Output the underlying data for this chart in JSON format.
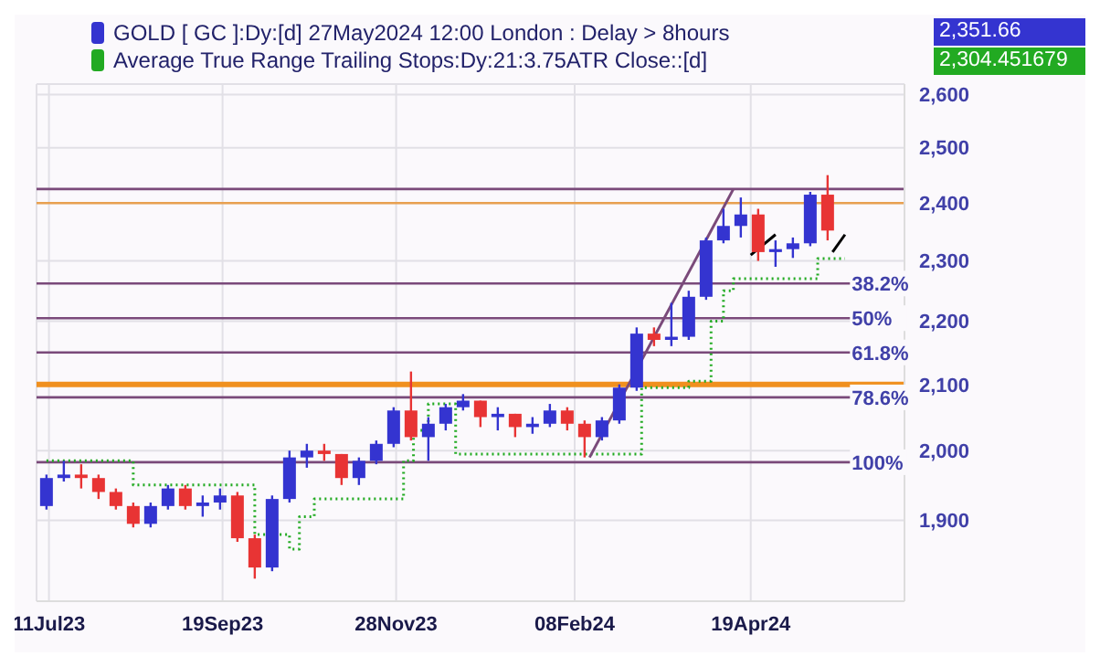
{
  "chart_data": {
    "type": "candlestick",
    "log": "y",
    "grid": true,
    "legend": "top left",
    "xlim": [
      "2023-07-06",
      "2024-06-20"
    ],
    "xticks": [
      {
        "value": "2023-07-11",
        "label": "11Jul23"
      },
      {
        "value": "2023-09-19",
        "label": "19Sep23"
      },
      {
        "value": "2023-11-28",
        "label": "28Nov23"
      },
      {
        "value": "2024-02-08",
        "label": "08Feb24"
      },
      {
        "value": "2024-04-19",
        "label": "19Apr24"
      }
    ],
    "ylim": [
      1790,
      2620
    ],
    "yticks": [
      {
        "value": 1900,
        "label": "1,900"
      },
      {
        "value": 2000,
        "label": "2,000"
      },
      {
        "value": 2100,
        "label": "2,100"
      },
      {
        "value": 2200,
        "label": "2,200"
      },
      {
        "value": 2300,
        "label": "2,300"
      },
      {
        "value": 2400,
        "label": "2,400"
      },
      {
        "value": 2500,
        "label": "2,500"
      },
      {
        "value": 2600,
        "label": "2,600"
      }
    ],
    "annotations": [
      "2,351.66",
      "2,304.451679",
      {
        "text": "38.2%",
        "x": "2024-05-29",
        "y": 2262
      },
      {
        "text": "50%",
        "x": "2024-05-29",
        "y": 2205
      },
      {
        "text": "61.8%",
        "x": "2024-05-29",
        "y": 2150
      },
      {
        "text": "78.6%",
        "x": "2024-05-29",
        "y": 2080
      },
      {
        "text": "100%",
        "x": "2024-05-29",
        "y": 1983
      }
    ],
    "ref_lines": [
      {
        "axis": "y",
        "value": 2100,
        "label": null,
        "color": "#f0901e"
      },
      {
        "axis": "y",
        "value": 2400,
        "label": null,
        "color": "#e8a050"
      },
      {
        "axis": "y",
        "value": 2425,
        "label": null,
        "color": "#7a4a7a"
      },
      {
        "axis": "y",
        "value": 2262,
        "label": null,
        "color": "#7a4a7a"
      },
      {
        "axis": "y",
        "value": 2205,
        "label": null,
        "color": "#7a4a7a"
      },
      {
        "axis": "y",
        "value": 2150,
        "label": null,
        "color": "#7a4a7a"
      },
      {
        "axis": "y",
        "value": 2080,
        "label": null,
        "color": "#7a4a7a"
      },
      {
        "axis": "y",
        "value": 1983,
        "label": null,
        "color": "#7a4a7a"
      }
    ],
    "series": [
      {
        "name": "GOLD [ GC ]:Dy:[d]  27May2024 12:00 London : Delay > 8hours",
        "color": "#3434d0",
        "x": [
          "2023-07-10",
          "2023-07-17",
          "2023-07-24",
          "2023-07-31",
          "2023-08-07",
          "2023-08-14",
          "2023-08-21",
          "2023-08-28",
          "2023-09-04",
          "2023-09-11",
          "2023-09-18",
          "2023-09-25",
          "2023-10-02",
          "2023-10-09",
          "2023-10-16",
          "2023-10-23",
          "2023-10-30",
          "2023-11-06",
          "2023-11-13",
          "2023-11-20",
          "2023-11-27",
          "2023-12-04",
          "2023-12-11",
          "2023-12-18",
          "2023-12-25",
          "2024-01-01",
          "2024-01-08",
          "2024-01-15",
          "2024-01-22",
          "2024-01-29",
          "2024-02-05",
          "2024-02-12",
          "2024-02-19",
          "2024-02-26",
          "2024-03-04",
          "2024-03-11",
          "2024-03-18",
          "2024-03-25",
          "2024-04-01",
          "2024-04-08",
          "2024-04-15",
          "2024-04-22",
          "2024-04-29",
          "2024-05-06",
          "2024-05-13",
          "2024-05-20"
        ],
        "ohlc": [
          [
            1920,
            1965,
            1915,
            1960
          ],
          [
            1960,
            1985,
            1955,
            1965
          ],
          [
            1965,
            1980,
            1945,
            1960
          ],
          [
            1960,
            1965,
            1930,
            1940
          ],
          [
            1940,
            1945,
            1915,
            1920
          ],
          [
            1920,
            1925,
            1890,
            1895
          ],
          [
            1895,
            1925,
            1890,
            1920
          ],
          [
            1920,
            1950,
            1915,
            1945
          ],
          [
            1945,
            1950,
            1915,
            1920
          ],
          [
            1920,
            1935,
            1905,
            1925
          ],
          [
            1925,
            1945,
            1915,
            1935
          ],
          [
            1935,
            1940,
            1870,
            1875
          ],
          [
            1875,
            1880,
            1820,
            1835
          ],
          [
            1835,
            1935,
            1830,
            1930
          ],
          [
            1930,
            2000,
            1925,
            1990
          ],
          [
            1990,
            2010,
            1975,
            2000
          ],
          [
            2000,
            2010,
            1985,
            1995
          ],
          [
            1995,
            1995,
            1950,
            1960
          ],
          [
            1960,
            1990,
            1950,
            1985
          ],
          [
            1985,
            2015,
            1980,
            2010
          ],
          [
            2010,
            2065,
            2005,
            2060
          ],
          [
            2060,
            2120,
            2015,
            2020
          ],
          [
            2020,
            2050,
            1985,
            2040
          ],
          [
            2040,
            2070,
            2030,
            2065
          ],
          [
            2065,
            2085,
            2060,
            2075
          ],
          [
            2075,
            2075,
            2035,
            2050
          ],
          [
            2050,
            2065,
            2030,
            2055
          ],
          [
            2055,
            2055,
            2020,
            2035
          ],
          [
            2035,
            2050,
            2025,
            2040
          ],
          [
            2040,
            2070,
            2035,
            2060
          ],
          [
            2060,
            2065,
            2030,
            2040
          ],
          [
            2040,
            2045,
            1990,
            2020
          ],
          [
            2020,
            2050,
            2015,
            2045
          ],
          [
            2045,
            2100,
            2040,
            2095
          ],
          [
            2095,
            2190,
            2090,
            2180
          ],
          [
            2180,
            2190,
            2160,
            2170
          ],
          [
            2170,
            2230,
            2160,
            2175
          ],
          [
            2175,
            2250,
            2170,
            2240
          ],
          [
            2240,
            2340,
            2235,
            2335
          ],
          [
            2335,
            2390,
            2330,
            2360
          ],
          [
            2360,
            2410,
            2340,
            2380
          ],
          [
            2380,
            2390,
            2300,
            2315
          ],
          [
            2315,
            2335,
            2290,
            2320
          ],
          [
            2320,
            2340,
            2305,
            2330
          ],
          [
            2330,
            2420,
            2325,
            2415
          ],
          [
            2415,
            2450,
            2335,
            2352
          ]
        ],
        "colors": [
          "#3434d0",
          "#3434d0",
          "#e83434",
          "#e83434",
          "#e83434",
          "#e83434",
          "#3434d0",
          "#3434d0",
          "#e83434",
          "#3434d0",
          "#3434d0",
          "#e83434",
          "#e83434",
          "#3434d0",
          "#3434d0",
          "#3434d0",
          "#e83434",
          "#e83434",
          "#3434d0",
          "#3434d0",
          "#3434d0",
          "#e83434",
          "#3434d0",
          "#3434d0",
          "#3434d0",
          "#e83434",
          "#3434d0",
          "#e83434",
          "#3434d0",
          "#3434d0",
          "#e83434",
          "#e83434",
          "#3434d0",
          "#3434d0",
          "#3434d0",
          "#e83434",
          "#3434d0",
          "#3434d0",
          "#3434d0",
          "#3434d0",
          "#3434d0",
          "#e83434",
          "#3434d0",
          "#3434d0",
          "#3434d0",
          "#e83434"
        ]
      },
      {
        "type": "step",
        "name": "Average True Range Trailing Stops:Dy:21:3.75ATR Close::[d]",
        "color": "#22aa22",
        "line_style": "dotted",
        "x": [
          "2023-07-10",
          "2023-08-14",
          "2023-10-02",
          "2023-10-16",
          "2023-10-20",
          "2023-10-26",
          "2023-12-01",
          "2023-12-05",
          "2023-12-11",
          "2023-12-22",
          "2024-03-06",
          "2024-03-25",
          "2024-04-03",
          "2024-04-08",
          "2024-04-12",
          "2024-05-16",
          "2024-05-27"
        ],
        "values": [
          1985,
          1950,
          1880,
          1860,
          1905,
          1930,
          1985,
          2030,
          2070,
          1995,
          2095,
          2105,
          2200,
          2250,
          2270,
          2304,
          2304
        ]
      },
      {
        "type": "line",
        "color": "#7a4a7a",
        "line_style": "solid",
        "x": [
          "2024-02-14",
          "2024-04-12"
        ],
        "values": [
          1990,
          2425
        ]
      },
      {
        "type": "line",
        "color": "#000000",
        "line_style": "solid",
        "x": [
          "2024-04-19",
          "2024-04-29"
        ],
        "values": [
          2310,
          2345
        ]
      },
      {
        "type": "line",
        "color": "#000000",
        "line_style": "solid",
        "x": [
          "2024-05-22",
          "2024-05-27"
        ],
        "values": [
          2315,
          2345
        ]
      }
    ]
  }
}
